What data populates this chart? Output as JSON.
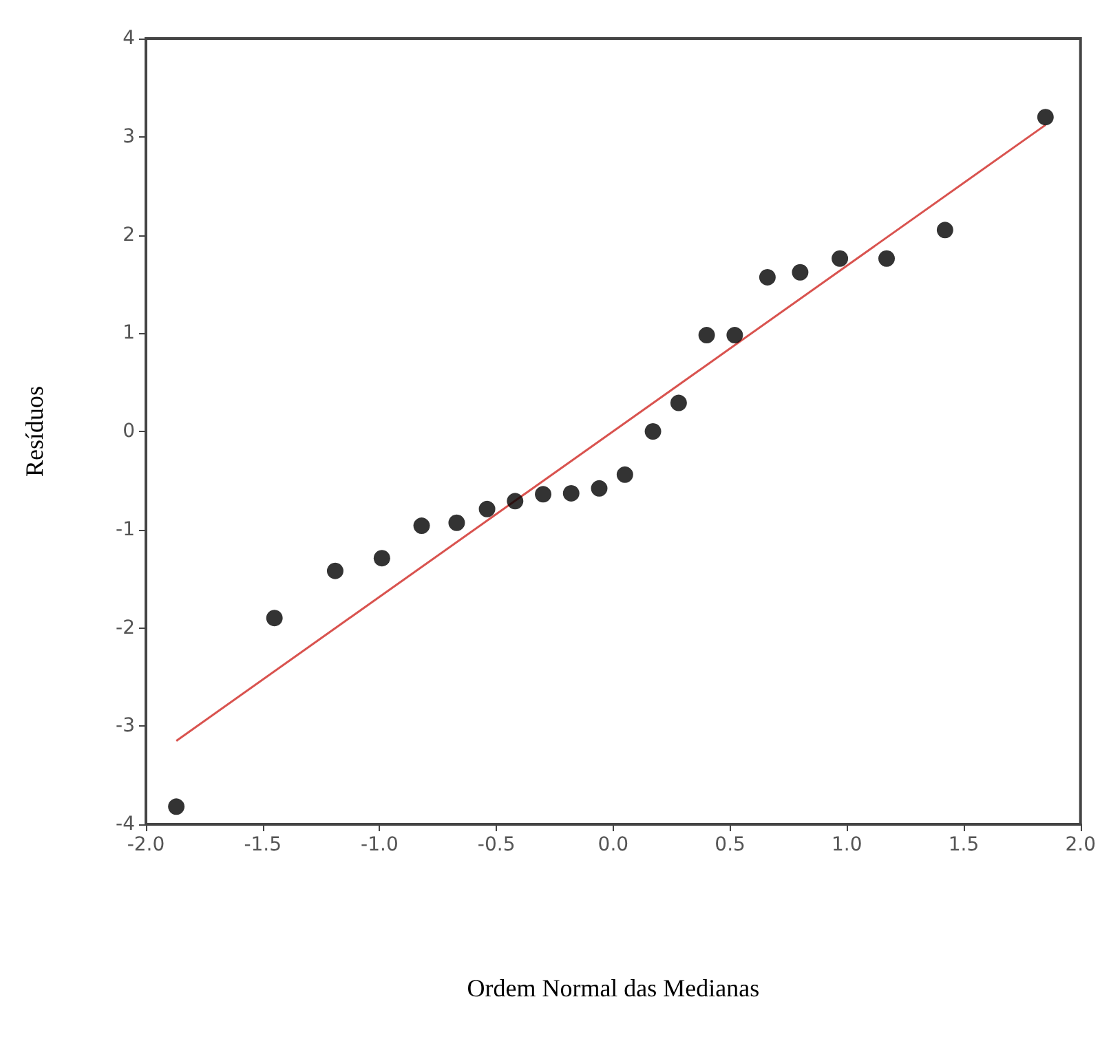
{
  "chart_data": {
    "type": "scatter",
    "xlabel": "Ordem Normal das Medianas",
    "ylabel": "Resíduos",
    "xlim": [
      -2,
      2
    ],
    "ylim": [
      -4,
      4
    ],
    "xticks": [
      {
        "value": -2,
        "label": "-2.0"
      },
      {
        "value": -1.5,
        "label": "-1.5"
      },
      {
        "value": -1,
        "label": "-1.0"
      },
      {
        "value": -0.5,
        "label": "-0.5"
      },
      {
        "value": 0,
        "label": "0.0"
      },
      {
        "value": 0.5,
        "label": "0.5"
      },
      {
        "value": 1,
        "label": "1.0"
      },
      {
        "value": 1.5,
        "label": "1.5"
      },
      {
        "value": 2,
        "label": "2.0"
      }
    ],
    "yticks": [
      -4,
      -3,
      -2,
      -1,
      0,
      1,
      2,
      3,
      4
    ],
    "grid": false,
    "series": [
      {
        "marker": "circle",
        "color": "#000000",
        "x": [
          -1.87,
          -1.45,
          -1.19,
          -0.99,
          -0.82,
          -0.67,
          -0.54,
          -0.42,
          -0.3,
          -0.18,
          -0.06,
          0.05,
          0.17,
          0.28,
          0.4,
          0.52,
          0.66,
          0.8,
          0.97,
          1.17,
          1.42,
          1.85
        ],
        "values": [
          -3.82,
          -1.9,
          -1.42,
          -1.29,
          -0.96,
          -0.93,
          -0.79,
          -0.71,
          -0.64,
          -0.63,
          -0.58,
          -0.44,
          0,
          0.29,
          0.98,
          0.98,
          1.57,
          1.62,
          1.76,
          1.76,
          2.05,
          3.2
        ]
      },
      {
        "type": "line",
        "marker": "none",
        "color": "#d9534f",
        "line_style": "solid",
        "x": [
          -1.87,
          1.85
        ],
        "values": [
          -3.15,
          3.12
        ]
      }
    ]
  }
}
